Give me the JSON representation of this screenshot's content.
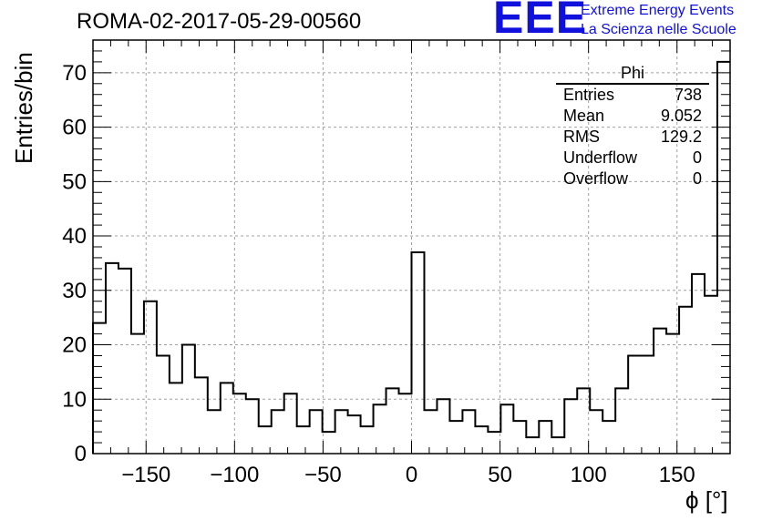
{
  "header": {
    "title": "ROMA-02-2017-05-29-00560",
    "logo_text": "EEE",
    "logo_line1": "Extreme Energy Events",
    "logo_line2": "La Scienza nelle Scuole",
    "logo_color": "#1111dd"
  },
  "stats": {
    "title": "Phi",
    "rows": [
      {
        "label": "Entries",
        "value": "738"
      },
      {
        "label": "Mean",
        "value": "9.052"
      },
      {
        "label": "RMS",
        "value": "129.2"
      },
      {
        "label": "Underflow",
        "value": "0"
      },
      {
        "label": "Overflow",
        "value": "0"
      }
    ]
  },
  "chart_data": {
    "type": "bar",
    "style": "step-histogram",
    "title": "ROMA-02-2017-05-29-00560",
    "xlabel": "ϕ [°]",
    "ylabel": "Entries/bin",
    "xlim": [
      -180,
      180
    ],
    "ylim": [
      0,
      76
    ],
    "x_ticks": [
      -150,
      -100,
      -50,
      0,
      50,
      100,
      150
    ],
    "x_tick_labels": [
      "−150",
      "−100",
      "−50",
      "0",
      "50",
      "100",
      "150"
    ],
    "y_ticks": [
      0,
      10,
      20,
      30,
      40,
      50,
      60,
      70
    ],
    "y_tick_labels": [
      "0",
      "10",
      "20",
      "30",
      "40",
      "50",
      "60",
      "70"
    ],
    "grid": true,
    "bin_width": 7.2,
    "bin_start": -180,
    "values": [
      24,
      35,
      34,
      22,
      28,
      18,
      13,
      20,
      14,
      8,
      13,
      11,
      10,
      5,
      8,
      11,
      5,
      8,
      4,
      8,
      7,
      5,
      9,
      12,
      11,
      37,
      8,
      10,
      6,
      8,
      5,
      4,
      9,
      6,
      3,
      6,
      3,
      10,
      12,
      8,
      6,
      12,
      18,
      18,
      23,
      22,
      27,
      33,
      29,
      72
    ],
    "line_color": "#000000",
    "grid_color": "#a0a0a0"
  }
}
